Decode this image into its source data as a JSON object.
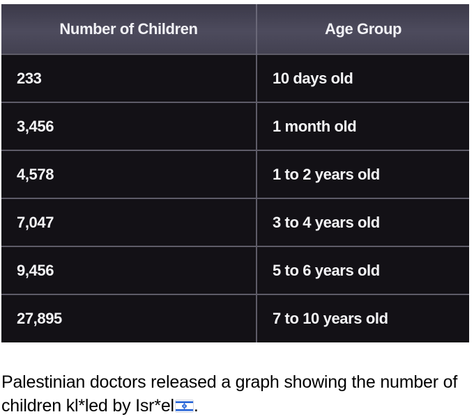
{
  "table": {
    "headers": [
      "Number of Children",
      "Age Group"
    ],
    "rows": [
      {
        "count": "233",
        "age": "10 days old"
      },
      {
        "count": "3,456",
        "age": "1 month old"
      },
      {
        "count": "4,578",
        "age": "1 to 2 years old"
      },
      {
        "count": "7,047",
        "age": "3 to 4 years old"
      },
      {
        "count": "9,456",
        "age": "5 to 6 years old"
      },
      {
        "count": "27,895",
        "age": "7 to 10 years old"
      }
    ]
  },
  "caption": {
    "text": "Palestinian doctors released a graph showing the number of children kl*led by Isr*el",
    "suffix": ".",
    "emoji_icon": "israel-flag-icon"
  },
  "colors": {
    "table_bg": "#131116",
    "header_bg": "#4d4b5d",
    "flag_blue": "#1f5fd6"
  }
}
